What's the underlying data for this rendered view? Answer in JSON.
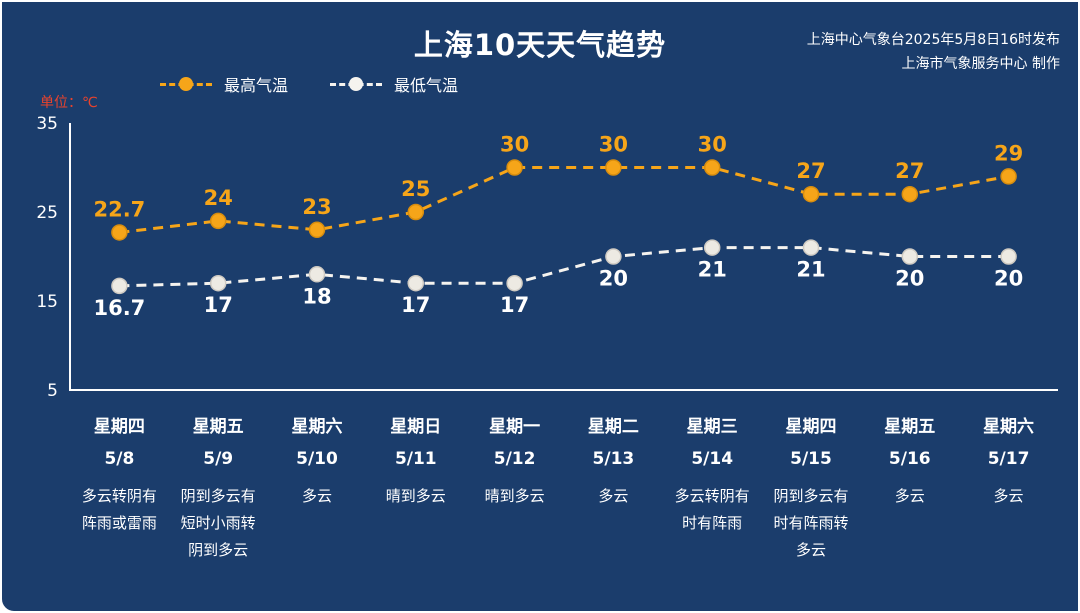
{
  "header": {
    "title": "上海10天天气趋势",
    "source_line1": "上海中心气象台2025年5月8日16时发布",
    "source_line2": "上海市气象服务中心 制作"
  },
  "legend": {
    "max_label": "最高气温",
    "min_label": "最低气温"
  },
  "unit_label": "单位：℃",
  "colors": {
    "background": "#1B3D6C",
    "axis": "#FFFFFF",
    "unit_text": "#E8432D",
    "max_line": "#F6A519",
    "max_point_stroke": "#D88D0E",
    "min_line": "#F5F3EF",
    "min_point_fill": "#EDEAE3",
    "min_point_stroke": "#CFCAC2",
    "min_label_text": "#FFFFFF"
  },
  "chart_data": {
    "type": "line",
    "title": "上海10天天气趋势",
    "ylabel": "℃",
    "ylim": [
      5,
      35
    ],
    "yticks": [
      35,
      25,
      15,
      5
    ],
    "grid": false,
    "legend_position": "top",
    "categories": [
      "5/8",
      "5/9",
      "5/10",
      "5/11",
      "5/12",
      "5/13",
      "5/14",
      "5/15",
      "5/16",
      "5/17"
    ],
    "series": [
      {
        "name": "最高气温",
        "color": "#F6A519",
        "label_color": "#F6A519",
        "point_fill": "#F6A519",
        "point_stroke": "#D88D0E",
        "values": [
          22.7,
          24,
          23,
          25,
          30,
          30,
          30,
          27,
          27,
          29
        ]
      },
      {
        "name": "最低气温",
        "color": "#F5F3EF",
        "label_color": "#FFFFFF",
        "point_fill": "#EDEAE3",
        "point_stroke": "#CFCAC2",
        "values": [
          16.7,
          17,
          18,
          17,
          17,
          20,
          21,
          21,
          20,
          20
        ]
      }
    ],
    "days": [
      {
        "weekday": "星期四",
        "date": "5/8",
        "weather": "多云转阴有阵雨或雷雨"
      },
      {
        "weekday": "星期五",
        "date": "5/9",
        "weather": "阴到多云有短时小雨转阴到多云"
      },
      {
        "weekday": "星期六",
        "date": "5/10",
        "weather": "多云"
      },
      {
        "weekday": "星期日",
        "date": "5/11",
        "weather": "晴到多云"
      },
      {
        "weekday": "星期一",
        "date": "5/12",
        "weather": "晴到多云"
      },
      {
        "weekday": "星期二",
        "date": "5/13",
        "weather": "多云"
      },
      {
        "weekday": "星期三",
        "date": "5/14",
        "weather": "多云转阴有时有阵雨"
      },
      {
        "weekday": "星期四",
        "date": "5/15",
        "weather": "阴到多云有时有阵雨转多云"
      },
      {
        "weekday": "星期五",
        "date": "5/16",
        "weather": "多云"
      },
      {
        "weekday": "星期六",
        "date": "5/17",
        "weather": "多云"
      }
    ]
  }
}
